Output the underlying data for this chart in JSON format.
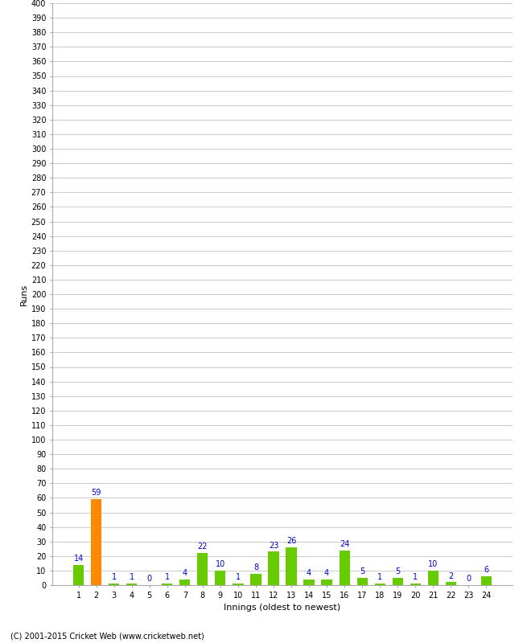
{
  "title": "",
  "xlabel": "Innings (oldest to newest)",
  "ylabel": "Runs",
  "categories": [
    1,
    2,
    3,
    4,
    5,
    6,
    7,
    8,
    9,
    10,
    11,
    12,
    13,
    14,
    15,
    16,
    17,
    18,
    19,
    20,
    21,
    22,
    23,
    24
  ],
  "values": [
    14,
    59,
    1,
    1,
    0,
    1,
    4,
    22,
    10,
    1,
    8,
    23,
    26,
    4,
    4,
    24,
    5,
    1,
    5,
    1,
    10,
    2,
    0,
    6
  ],
  "bar_colors": [
    "#66cc00",
    "#ff8800",
    "#66cc00",
    "#66cc00",
    "#66cc00",
    "#66cc00",
    "#66cc00",
    "#66cc00",
    "#66cc00",
    "#66cc00",
    "#66cc00",
    "#66cc00",
    "#66cc00",
    "#66cc00",
    "#66cc00",
    "#66cc00",
    "#66cc00",
    "#66cc00",
    "#66cc00",
    "#66cc00",
    "#66cc00",
    "#66cc00",
    "#66cc00",
    "#66cc00"
  ],
  "ylim": [
    0,
    400
  ],
  "ytick_step": 10,
  "label_color": "#0000cc",
  "background_color": "#ffffff",
  "grid_color": "#cccccc",
  "footer": "(C) 2001-2015 Cricket Web (www.cricketweb.net)"
}
